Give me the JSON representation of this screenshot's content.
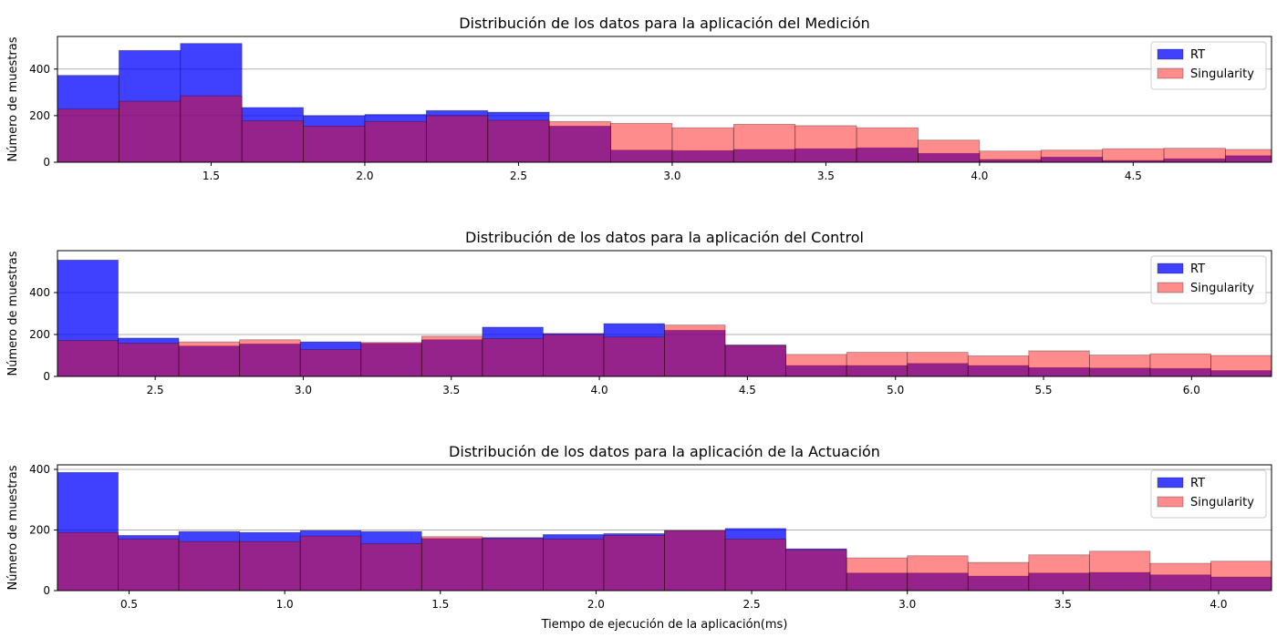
{
  "chart_data": [
    {
      "type": "bar",
      "title": "Distribución de los datos para la aplicación del Medición",
      "ylabel": "Número de muestras",
      "xlabel": "",
      "xlim": [
        1.0,
        4.95
      ],
      "ylim": [
        0,
        540
      ],
      "xticks": [
        "1.5",
        "2.0",
        "2.5",
        "3.0",
        "3.5",
        "4.0",
        "4.5"
      ],
      "yticks": [
        "0",
        "200",
        "400"
      ],
      "grid": "y",
      "legend_position": "top-right",
      "bin_start": 1.0,
      "bin_width": 0.2,
      "series": [
        {
          "name": "RT",
          "color": "#0000ff",
          "values": [
            373,
            480,
            510,
            235,
            200,
            205,
            222,
            215,
            155,
            52,
            50,
            55,
            58,
            62,
            38,
            12,
            22,
            8,
            15,
            28
          ]
        },
        {
          "name": "Singularity",
          "color": "#ff0000",
          "values": [
            228,
            262,
            285,
            178,
            155,
            175,
            200,
            180,
            175,
            167,
            148,
            163,
            157,
            148,
            95,
            48,
            52,
            58,
            60,
            55
          ]
        }
      ]
    },
    {
      "type": "bar",
      "title": "Distribución de los datos para la aplicación del Control",
      "ylabel": "Número de muestras",
      "xlabel": "",
      "xlim": [
        2.17,
        6.27
      ],
      "ylim": [
        0,
        600
      ],
      "xticks": [
        "2.5",
        "3.0",
        "3.5",
        "4.0",
        "4.5",
        "5.0",
        "5.5",
        "6.0"
      ],
      "yticks": [
        "0",
        "200",
        "400"
      ],
      "grid": "y",
      "legend_position": "top-right",
      "bin_start": 2.17,
      "bin_width": 0.205,
      "series": [
        {
          "name": "RT",
          "color": "#0000ff",
          "values": [
            555,
            183,
            145,
            155,
            165,
            158,
            175,
            235,
            205,
            252,
            220,
            150,
            52,
            52,
            62,
            52,
            42,
            40,
            38,
            28
          ]
        },
        {
          "name": "Singularity",
          "color": "#ff0000",
          "values": [
            172,
            158,
            165,
            175,
            128,
            162,
            192,
            180,
            200,
            188,
            245,
            148,
            105,
            115,
            115,
            98,
            122,
            102,
            108,
            100
          ]
        }
      ]
    },
    {
      "type": "bar",
      "title": "Distribución de los datos para la aplicación de la Actuación",
      "ylabel": "Número de muestras",
      "xlabel": "Tiempo de ejecución de la aplicación(ms)",
      "xlim": [
        0.27,
        4.17
      ],
      "ylim": [
        0,
        415
      ],
      "xticks": [
        "0.5",
        "1.0",
        "1.5",
        "2.0",
        "2.5",
        "3.0",
        "3.5",
        "4.0"
      ],
      "yticks": [
        "0",
        "200",
        "400"
      ],
      "grid": "y",
      "legend_position": "top-right",
      "bin_start": 0.27,
      "bin_width": 0.195,
      "series": [
        {
          "name": "RT",
          "color": "#0000ff",
          "values": [
            390,
            182,
            195,
            192,
            198,
            195,
            172,
            175,
            185,
            188,
            198,
            205,
            138,
            58,
            58,
            48,
            58,
            60,
            52,
            45
          ]
        },
        {
          "name": "Singularity",
          "color": "#ff0000",
          "values": [
            192,
            170,
            162,
            162,
            180,
            155,
            178,
            172,
            170,
            182,
            198,
            170,
            135,
            108,
            115,
            93,
            118,
            130,
            90,
            97
          ]
        }
      ]
    }
  ]
}
